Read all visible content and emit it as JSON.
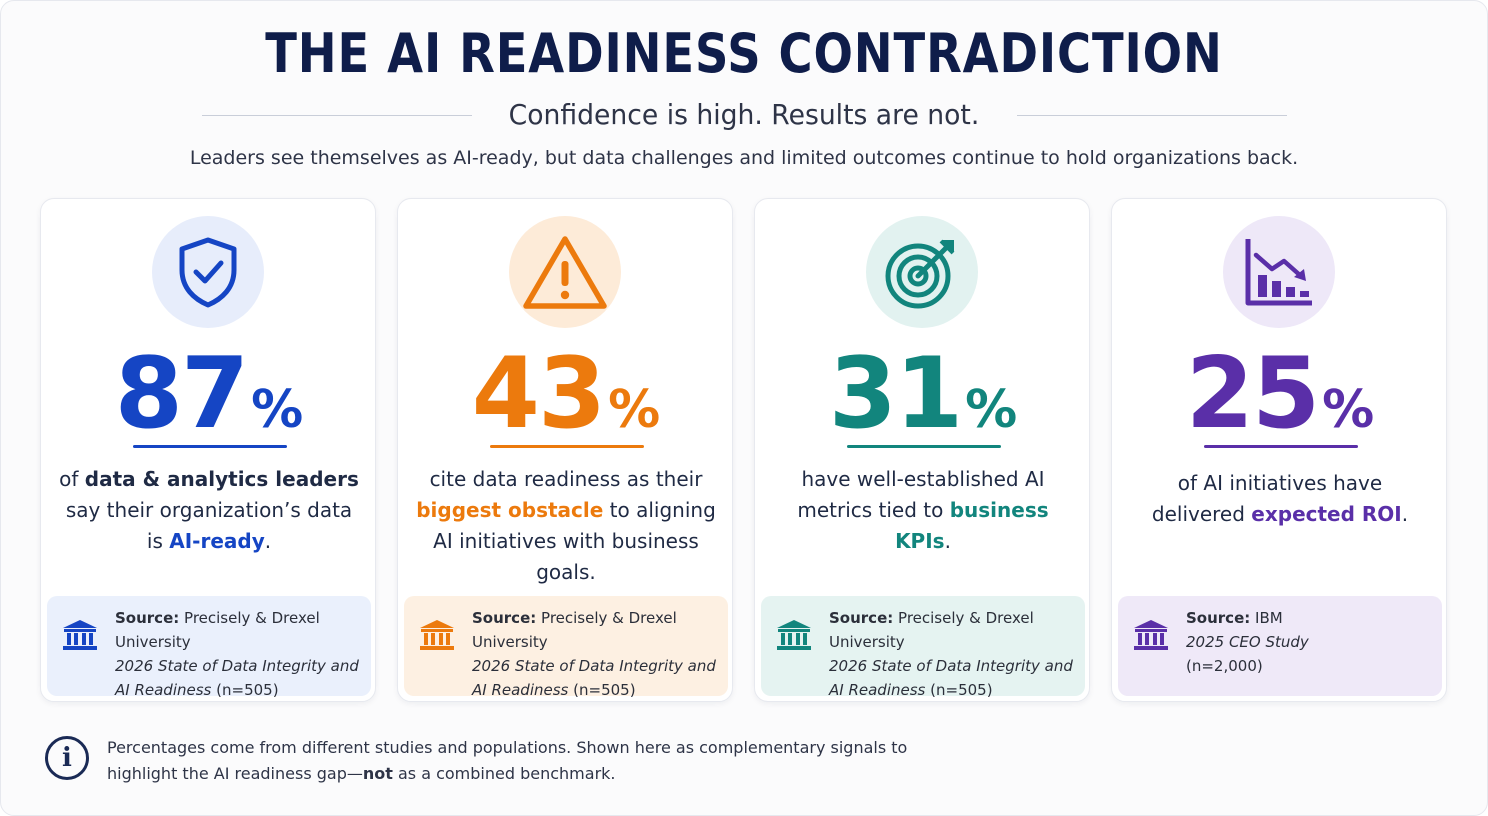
{
  "header": {
    "title": "THE AI READINESS CONTRADICTION",
    "subtitle": "Confidence is high. Results are not.",
    "intro": "Leaders see themselves as AI-ready, but data challenges and limited outcomes continue to hold organizations back."
  },
  "colors": {
    "navy": "#0f1d4a",
    "blue": "#1545c4",
    "orange": "#ec7a0d",
    "teal": "#12857d",
    "purple": "#5a2fa8"
  },
  "cards": [
    {
      "icon": "shield-check-icon",
      "stat": "87",
      "pct": "%",
      "desc": {
        "p1": "of ",
        "h1": "data & analytics leaders",
        "p2": " say their organization’s data is ",
        "h2": "AI-ready",
        "p3": "."
      },
      "source": {
        "label": "Source:",
        "org": "Precisely & Drexel University",
        "title_italic": "2026 State of Data Integrity and AI Readiness",
        "detail": "(n=505)"
      }
    },
    {
      "icon": "warning-triangle-icon",
      "stat": "43",
      "pct": "%",
      "desc": {
        "p1": "cite data readiness as their ",
        "h1": "biggest obstacle",
        "p2": " to aligning AI initiatives with business goals."
      },
      "source": {
        "label": "Source:",
        "org": "Precisely & Drexel University",
        "title_italic": "2026 State of Data Integrity and AI Readiness",
        "detail": "(n=505)"
      }
    },
    {
      "icon": "target-arrow-icon",
      "stat": "31",
      "pct": "%",
      "desc": {
        "p1": "have well-established AI metrics tied to ",
        "h1": "business KPIs",
        "p2": "."
      },
      "source": {
        "label": "Source:",
        "org": "Precisely & Drexel University",
        "title_italic": "2026 State of Data Integrity and AI Readiness",
        "detail": "(n=505)"
      }
    },
    {
      "icon": "declining-chart-icon",
      "stat": "25",
      "pct": "%",
      "desc": {
        "p1": "of AI initiatives have delivered ",
        "h1": "expected ROI",
        "p2": "."
      },
      "source": {
        "label": "Source:",
        "org": "IBM",
        "title_italic": "2025 CEO Study",
        "detail": "(n=2,000)"
      }
    }
  ],
  "footnote": {
    "icon": "info-icon",
    "p1": "Percentages come from different studies and populations. Shown here as complementary signals to highlight the AI readiness gap—",
    "bold": "not",
    "p2": " as a combined benchmark."
  }
}
